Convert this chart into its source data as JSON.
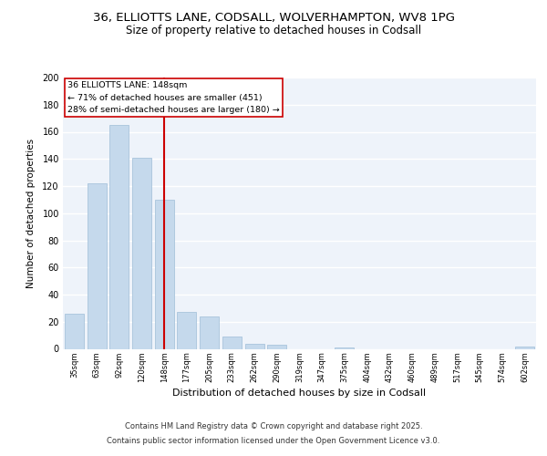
{
  "title_line1": "36, ELLIOTTS LANE, CODSALL, WOLVERHAMPTON, WV8 1PG",
  "title_line2": "Size of property relative to detached houses in Codsall",
  "xlabel": "Distribution of detached houses by size in Codsall",
  "ylabel": "Number of detached properties",
  "bar_labels": [
    "35sqm",
    "63sqm",
    "92sqm",
    "120sqm",
    "148sqm",
    "177sqm",
    "205sqm",
    "233sqm",
    "262sqm",
    "290sqm",
    "319sqm",
    "347sqm",
    "375sqm",
    "404sqm",
    "432sqm",
    "460sqm",
    "489sqm",
    "517sqm",
    "545sqm",
    "574sqm",
    "602sqm"
  ],
  "bar_values": [
    26,
    122,
    165,
    141,
    110,
    27,
    24,
    9,
    4,
    3,
    0,
    0,
    1,
    0,
    0,
    0,
    0,
    0,
    0,
    0,
    2
  ],
  "bar_color": "#c5d9ec",
  "bar_edge_color": "#a8c4dc",
  "vline_x": 4,
  "vline_color": "#cc0000",
  "annotation_line1": "36 ELLIOTTS LANE: 148sqm",
  "annotation_line2": "← 71% of detached houses are smaller (451)",
  "annotation_line3": "28% of semi-detached houses are larger (180) →",
  "ylim": [
    0,
    200
  ],
  "yticks": [
    0,
    20,
    40,
    60,
    80,
    100,
    120,
    140,
    160,
    180,
    200
  ],
  "bg_color": "#eef3fa",
  "footer_line1": "Contains HM Land Registry data © Crown copyright and database right 2025.",
  "footer_line2": "Contains public sector information licensed under the Open Government Licence v3.0."
}
